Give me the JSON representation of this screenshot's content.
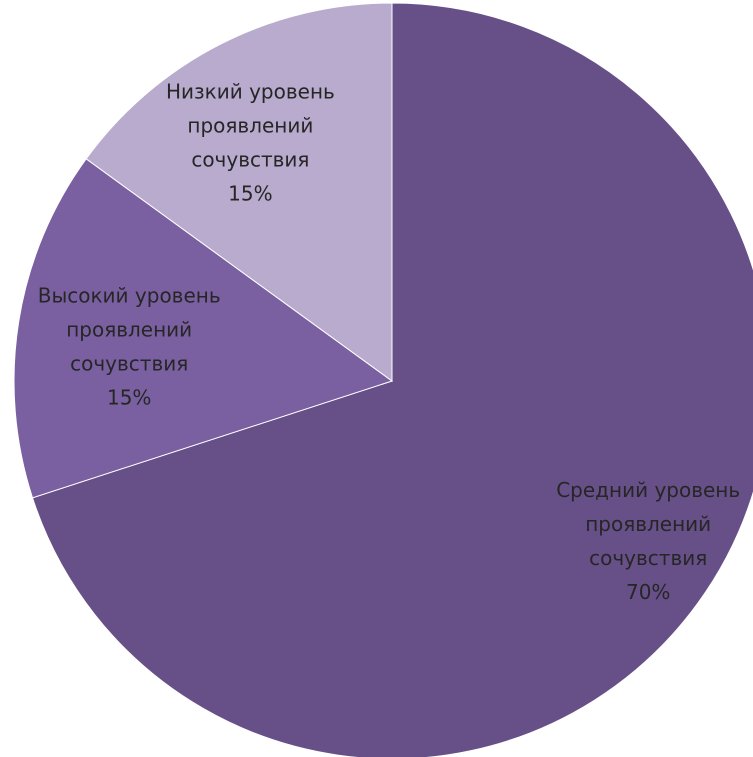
{
  "chart_data": {
    "type": "pie",
    "slices": [
      {
        "lines": [
          "Средний уровень",
          "проявлений",
          "сочувствия",
          "70%"
        ],
        "label": "Средний уровень проявлений сочувствия",
        "value": 70,
        "color": "#674f88"
      },
      {
        "lines": [
          "Высокий уровень",
          "проявлений",
          "сочувствия",
          "15%"
        ],
        "label": "Высокий уровень проявлений сочувствия",
        "value": 15,
        "color": "#7a60a0"
      },
      {
        "lines": [
          "Низкий уровень",
          "проявлений",
          "сочувствия",
          "15%"
        ],
        "label": "Низкий уровень проявлений сочувствия",
        "value": 15,
        "color": "#b8abcd"
      }
    ],
    "start_angle": "12 o'clock",
    "direction": "clockwise",
    "legend": "none",
    "data_labels": "inside slices"
  }
}
